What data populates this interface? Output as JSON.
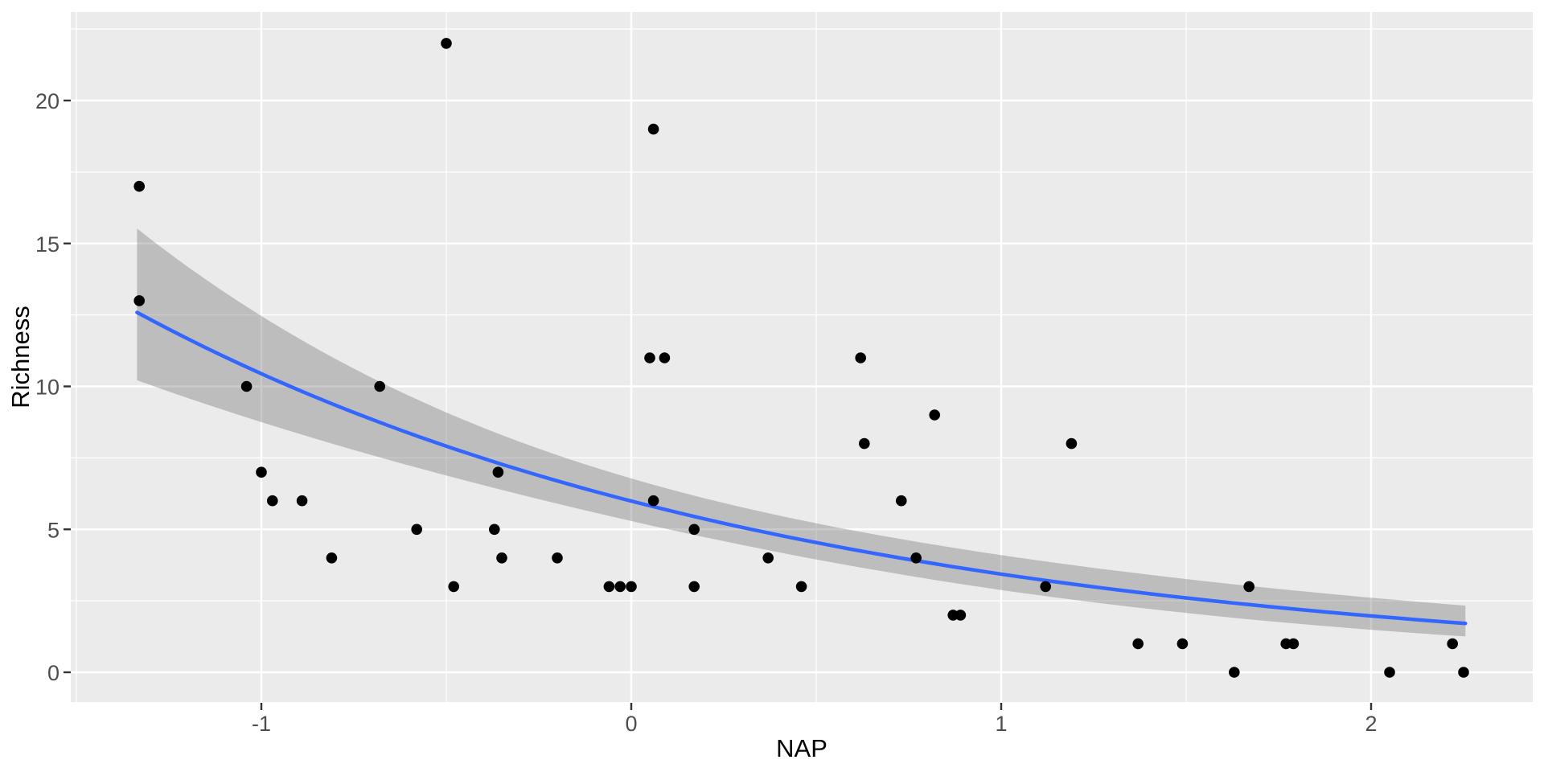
{
  "chart_data": {
    "type": "scatter",
    "title": "",
    "xlabel": "NAP",
    "ylabel": "Richness",
    "legend": "none",
    "grid": "major+minor, white on grey panel (ggplot2 default theme)",
    "x_axis": {
      "tick_values": [
        -1,
        0,
        1,
        2
      ],
      "tick_labels": [
        "-1",
        "0",
        "1",
        "2"
      ],
      "minor_tick_values": [
        -1.5,
        -0.5,
        0.5,
        1.5
      ],
      "range": [
        -1.51,
        2.44
      ]
    },
    "y_axis": {
      "tick_values": [
        0,
        5,
        10,
        15,
        20
      ],
      "tick_labels": [
        "0",
        "5",
        "10",
        "15",
        "20"
      ],
      "minor_tick_values": [
        2.5,
        7.5,
        12.5,
        17.5,
        22.5
      ],
      "range": [
        -1.04,
        23.09
      ]
    },
    "points": [
      [
        -1.33,
        17
      ],
      [
        -1.33,
        13
      ],
      [
        -1.04,
        10
      ],
      [
        -1.0,
        7
      ],
      [
        -0.97,
        6
      ],
      [
        -0.89,
        6
      ],
      [
        -0.81,
        4
      ],
      [
        -0.68,
        10
      ],
      [
        -0.58,
        5
      ],
      [
        -0.5,
        22
      ],
      [
        -0.48,
        3
      ],
      [
        -0.37,
        5
      ],
      [
        -0.36,
        7
      ],
      [
        -0.35,
        4
      ],
      [
        -0.2,
        4
      ],
      [
        -0.06,
        3
      ],
      [
        -0.03,
        3
      ],
      [
        0.0,
        3
      ],
      [
        0.05,
        11
      ],
      [
        0.06,
        19
      ],
      [
        0.06,
        6
      ],
      [
        0.09,
        11
      ],
      [
        0.17,
        5
      ],
      [
        0.17,
        3
      ],
      [
        0.37,
        4
      ],
      [
        0.46,
        3
      ],
      [
        0.62,
        11
      ],
      [
        0.63,
        8
      ],
      [
        0.73,
        6
      ],
      [
        0.77,
        4
      ],
      [
        0.82,
        9
      ],
      [
        0.87,
        2
      ],
      [
        0.89,
        2
      ],
      [
        1.12,
        3
      ],
      [
        1.19,
        8
      ],
      [
        1.37,
        1
      ],
      [
        1.49,
        1
      ],
      [
        1.63,
        0
      ],
      [
        1.67,
        3
      ],
      [
        1.77,
        1
      ],
      [
        1.79,
        1
      ],
      [
        2.05,
        0
      ],
      [
        2.22,
        1
      ],
      [
        2.25,
        0
      ]
    ],
    "smooth": {
      "model": "poisson-glm-log-link",
      "formula": "mu(x) = exp(intercept + slope * x)",
      "intercept": 1.79,
      "slope": -0.556,
      "band": "exp(eta +/- z * sqrt(se_a + se_b * x^2))",
      "se_a": 0.004,
      "se_b": 0.00414,
      "z": 1.96,
      "x_min": -1.336,
      "x_max": 2.255
    },
    "style": {
      "panel_bg": "#EBEBEB",
      "grid_color": "#FFFFFF",
      "point_color": "#000000",
      "line_color": "#3366FF",
      "band_fill": "rgba(115,115,115,0.38)",
      "tick_label_color": "#4D4D4D",
      "axis_title_color": "#000000",
      "tick_mark_color": "#333333"
    }
  }
}
